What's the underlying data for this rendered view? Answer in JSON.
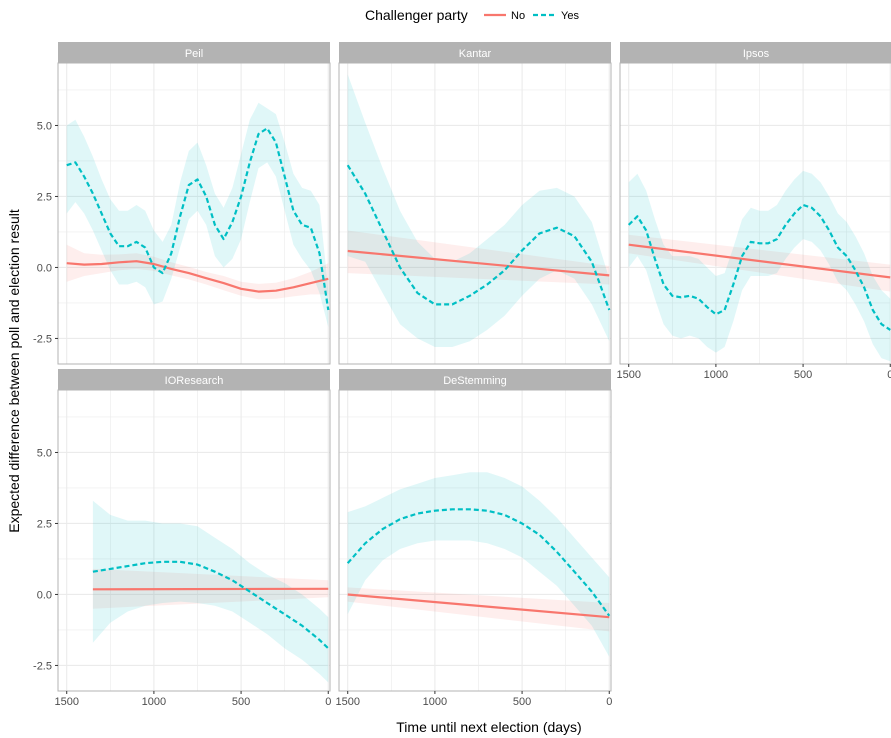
{
  "chart_data": {
    "type": "line",
    "xlabel": "Time until next election (days)",
    "ylabel": "Expected difference between poll and election result",
    "xlim": [
      1550,
      -10
    ],
    "x_reversed": true,
    "ylim": [
      -3.4,
      7.2
    ],
    "x_ticks": [
      1500,
      1000,
      500,
      0
    ],
    "y_ticks": [
      -2.5,
      0.0,
      2.5,
      5.0
    ],
    "y_tick_labels": [
      "-2.5",
      "0.0",
      "2.5",
      "5.0"
    ],
    "grid": true,
    "legend": {
      "title": "Challenger party",
      "placement": "top",
      "entries": [
        {
          "label": "No",
          "color": "#F8766D",
          "dash": "solid"
        },
        {
          "label": "Yes",
          "color": "#00BFC4",
          "dash": "dashed"
        }
      ]
    },
    "colors": {
      "No": "#F8766D",
      "Yes": "#00BFC4",
      "strip_bg": "#b3b3b3",
      "grid": "#ebebeb",
      "panel_border": "#b3b3b3"
    },
    "panels": [
      {
        "name": "Peil",
        "series": [
          {
            "group": "No",
            "x": [
              1500,
              1400,
              1300,
              1200,
              1100,
              1000,
              900,
              800,
              700,
              600,
              500,
              400,
              300,
              200,
              100,
              0
            ],
            "y": [
              0.15,
              0.1,
              0.12,
              0.18,
              0.22,
              0.12,
              -0.05,
              -0.2,
              -0.38,
              -0.55,
              -0.75,
              -0.85,
              -0.82,
              -0.7,
              -0.55,
              -0.4
            ],
            "lower": [
              -0.5,
              -0.3,
              -0.2,
              -0.1,
              -0.05,
              -0.12,
              -0.28,
              -0.42,
              -0.6,
              -0.8,
              -1.0,
              -1.12,
              -1.1,
              -1.02,
              -0.95,
              -0.95
            ],
            "upper": [
              0.8,
              0.5,
              0.45,
              0.46,
              0.5,
              0.38,
              0.18,
              0.02,
              -0.16,
              -0.3,
              -0.5,
              -0.58,
              -0.54,
              -0.38,
              -0.15,
              0.15
            ]
          },
          {
            "group": "Yes",
            "x": [
              1500,
              1450,
              1400,
              1350,
              1300,
              1250,
              1200,
              1150,
              1100,
              1050,
              1000,
              950,
              900,
              850,
              800,
              750,
              700,
              650,
              600,
              550,
              500,
              450,
              400,
              350,
              300,
              250,
              200,
              150,
              100,
              50,
              0
            ],
            "y": [
              3.6,
              3.7,
              3.2,
              2.6,
              1.9,
              1.2,
              0.75,
              0.75,
              0.9,
              0.7,
              0.0,
              -0.2,
              0.5,
              1.8,
              2.9,
              3.1,
              2.5,
              1.5,
              1.0,
              1.6,
              2.5,
              3.7,
              4.7,
              4.9,
              4.4,
              3.2,
              2.0,
              1.5,
              1.4,
              0.5,
              -1.5
            ],
            "lower": [
              1.9,
              2.3,
              1.9,
              1.3,
              0.6,
              -0.1,
              -0.6,
              -0.6,
              -0.5,
              -0.7,
              -1.3,
              -1.2,
              -0.4,
              0.7,
              1.7,
              2.0,
              1.5,
              0.4,
              0.0,
              0.3,
              1.0,
              2.3,
              3.5,
              3.7,
              3.2,
              2.0,
              0.8,
              0.3,
              -0.1,
              -0.9,
              -2.1
            ],
            "upper": [
              5.0,
              5.2,
              4.6,
              3.9,
              3.1,
              2.4,
              2.0,
              2.0,
              2.2,
              2.0,
              1.3,
              0.9,
              1.5,
              3.0,
              4.1,
              4.4,
              3.6,
              2.6,
              2.1,
              2.8,
              4.0,
              5.2,
              5.8,
              5.6,
              5.4,
              4.4,
              3.3,
              2.8,
              2.7,
              2.2,
              -0.8
            ]
          }
        ]
      },
      {
        "name": "Kantar",
        "series": [
          {
            "group": "No",
            "x": [
              1500,
              0
            ],
            "y": [
              0.58,
              -0.28
            ],
            "lower": [
              -0.2,
              -0.6
            ],
            "upper": [
              1.3,
              0.05
            ]
          },
          {
            "group": "Yes",
            "x": [
              1500,
              1400,
              1300,
              1200,
              1100,
              1000,
              900,
              800,
              700,
              600,
              500,
              400,
              300,
              200,
              100,
              0
            ],
            "y": [
              3.6,
              2.6,
              1.3,
              0.0,
              -0.9,
              -1.3,
              -1.3,
              -1.0,
              -0.6,
              -0.1,
              0.6,
              1.2,
              1.4,
              1.1,
              0.2,
              -1.5
            ],
            "lower": [
              0.4,
              0.2,
              -0.9,
              -2.0,
              -2.5,
              -2.8,
              -2.8,
              -2.6,
              -2.2,
              -1.7,
              -1.0,
              -0.4,
              -0.1,
              -0.4,
              -1.3,
              -2.6
            ],
            "upper": [
              6.8,
              5.1,
              3.5,
              2.0,
              0.9,
              0.3,
              0.2,
              0.5,
              1.0,
              1.5,
              2.2,
              2.7,
              2.8,
              2.5,
              1.6,
              -0.4
            ]
          }
        ]
      },
      {
        "name": "Ipsos",
        "series": [
          {
            "group": "No",
            "x": [
              1500,
              0
            ],
            "y": [
              0.8,
              -0.35
            ],
            "lower": [
              0.5,
              -0.85
            ],
            "upper": [
              1.15,
              0.1
            ]
          },
          {
            "group": "Yes",
            "x": [
              1500,
              1450,
              1400,
              1350,
              1300,
              1250,
              1200,
              1150,
              1100,
              1050,
              1000,
              950,
              900,
              850,
              800,
              750,
              700,
              650,
              600,
              550,
              500,
              450,
              400,
              350,
              300,
              250,
              200,
              150,
              100,
              50,
              0
            ],
            "y": [
              1.5,
              1.8,
              1.3,
              0.3,
              -0.6,
              -1.0,
              -1.05,
              -1.0,
              -1.1,
              -1.4,
              -1.65,
              -1.5,
              -0.6,
              0.4,
              0.9,
              0.85,
              0.85,
              1.0,
              1.5,
              1.9,
              2.2,
              2.1,
              1.8,
              1.3,
              0.7,
              0.4,
              -0.1,
              -0.7,
              -1.5,
              -2.0,
              -2.2
            ],
            "lower": [
              0.0,
              0.4,
              -0.1,
              -1.1,
              -2.0,
              -2.4,
              -2.5,
              -2.4,
              -2.5,
              -2.8,
              -3.0,
              -2.8,
              -1.9,
              -0.8,
              -0.3,
              -0.3,
              -0.3,
              -0.2,
              0.3,
              0.7,
              1.0,
              0.9,
              0.6,
              0.1,
              -0.5,
              -0.8,
              -1.3,
              -1.9,
              -2.7,
              -3.2,
              -3.3
            ],
            "upper": [
              3.0,
              3.3,
              2.7,
              1.7,
              0.8,
              0.4,
              0.4,
              0.4,
              0.3,
              0.0,
              -0.3,
              -0.2,
              0.7,
              1.7,
              2.1,
              2.0,
              2.0,
              2.2,
              2.7,
              3.1,
              3.4,
              3.3,
              3.0,
              2.5,
              1.9,
              1.6,
              1.1,
              0.5,
              -0.3,
              -0.8,
              -1.1
            ]
          }
        ]
      },
      {
        "name": "IOResearch",
        "series": [
          {
            "group": "No",
            "x": [
              1350,
              0
            ],
            "y": [
              0.18,
              0.2
            ],
            "lower": [
              -0.5,
              -0.1
            ],
            "upper": [
              0.9,
              0.5
            ]
          },
          {
            "group": "Yes",
            "x": [
              1350,
              1250,
              1150,
              1050,
              950,
              850,
              750,
              650,
              550,
              450,
              350,
              250,
              150,
              50,
              0
            ],
            "y": [
              0.8,
              0.9,
              1.0,
              1.1,
              1.15,
              1.15,
              1.05,
              0.8,
              0.5,
              0.1,
              -0.3,
              -0.7,
              -1.1,
              -1.6,
              -1.9
            ],
            "lower": [
              -1.7,
              -1.0,
              -0.6,
              -0.4,
              -0.3,
              -0.25,
              -0.3,
              -0.4,
              -0.6,
              -1.0,
              -1.4,
              -1.9,
              -2.3,
              -2.8,
              -3.1
            ],
            "upper": [
              3.3,
              2.8,
              2.6,
              2.6,
              2.5,
              2.5,
              2.4,
              2.0,
              1.6,
              1.1,
              0.7,
              0.4,
              0.0,
              -0.5,
              -0.8
            ]
          }
        ]
      },
      {
        "name": "DeStemming",
        "series": [
          {
            "group": "No",
            "x": [
              1500,
              0
            ],
            "y": [
              0.0,
              -0.8
            ],
            "lower": [
              -0.25,
              -1.3
            ],
            "upper": [
              0.25,
              -0.3
            ]
          },
          {
            "group": "Yes",
            "x": [
              1500,
              1400,
              1300,
              1200,
              1100,
              1000,
              900,
              800,
              700,
              600,
              500,
              400,
              300,
              200,
              100,
              0
            ],
            "y": [
              1.1,
              1.8,
              2.3,
              2.65,
              2.85,
              2.95,
              3.0,
              3.0,
              2.95,
              2.8,
              2.5,
              2.1,
              1.5,
              0.8,
              0.1,
              -0.75
            ],
            "lower": [
              -0.7,
              0.5,
              1.2,
              1.6,
              1.8,
              1.9,
              1.9,
              1.9,
              1.8,
              1.6,
              1.3,
              0.8,
              0.3,
              -0.4,
              -1.1,
              -2.2
            ],
            "upper": [
              2.9,
              3.1,
              3.4,
              3.7,
              3.9,
              4.1,
              4.2,
              4.3,
              4.3,
              4.1,
              3.8,
              3.3,
              2.7,
              2.0,
              1.3,
              0.6
            ]
          }
        ]
      }
    ]
  }
}
